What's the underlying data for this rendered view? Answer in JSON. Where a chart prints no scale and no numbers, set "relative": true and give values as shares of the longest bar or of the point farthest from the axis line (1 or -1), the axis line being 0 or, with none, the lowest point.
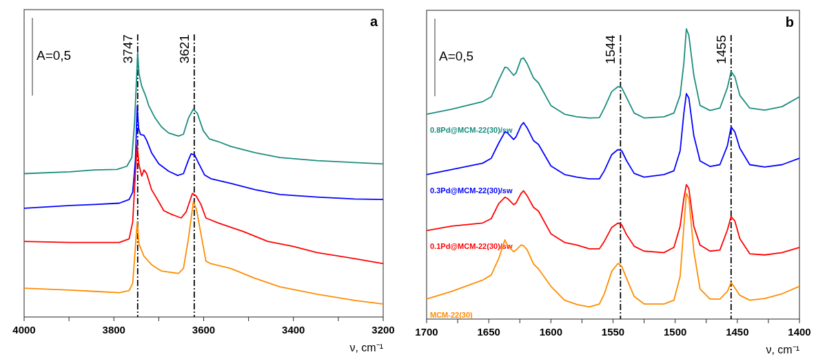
{
  "chart_data": [
    {
      "type": "line",
      "title": "a",
      "xlabel": "ν, cm⁻¹",
      "relative": true,
      "grid": false,
      "legend": false,
      "marker": "none",
      "line_style": "solid",
      "xlim": [
        4000,
        3200
      ],
      "xticks": [
        4000,
        {
          "value": 3900,
          "label": null
        },
        3800,
        {
          "value": 3700,
          "label": null
        },
        3600,
        {
          "value": 3500,
          "label": null
        },
        3400,
        {
          "value": 3300,
          "label": null
        },
        3200
      ],
      "annotations": [
        "A=0,5"
      ],
      "ref_lines": [
        {
          "axis": "x",
          "value": 3747,
          "label": "3747",
          "color": "#000000",
          "line_style": "dashed"
        },
        {
          "axis": "x",
          "value": 3621,
          "label": "3621",
          "color": "#000000",
          "line_style": "dashed"
        }
      ],
      "series": [
        {
          "color": "#1a8c7e",
          "x": [
            4000,
            3898,
            3843,
            3793,
            3771,
            3760,
            3754,
            3749,
            3747,
            3744,
            3738,
            3730,
            3722,
            3708,
            3694,
            3678,
            3656,
            3645,
            3634,
            3623,
            3614,
            3601,
            3587,
            3567,
            3540,
            3485,
            3430,
            3347,
            3264,
            3200
          ],
          "values": [
            0.543,
            0.55,
            0.557,
            0.559,
            0.571,
            0.604,
            0.734,
            0.921,
            1,
            0.921,
            0.874,
            0.841,
            0.799,
            0.753,
            0.72,
            0.697,
            0.685,
            0.692,
            0.753,
            0.787,
            0.771,
            0.706,
            0.674,
            0.664,
            0.646,
            0.622,
            0.604,
            0.592,
            0.585,
            0.58
          ]
        },
        {
          "color": "#0000ff",
          "x": [
            4000,
            3898,
            3843,
            3788,
            3766,
            3758,
            3752,
            3748,
            3745,
            3741,
            3733,
            3727,
            3716,
            3700,
            3678,
            3658,
            3645,
            3634,
            3628,
            3620,
            3612,
            3598,
            3584,
            3540,
            3485,
            3430,
            3347,
            3264,
            3200
          ],
          "values": [
            0.412,
            0.422,
            0.426,
            0.431,
            0.445,
            0.473,
            0.594,
            0.799,
            0.715,
            0.692,
            0.688,
            0.669,
            0.622,
            0.58,
            0.552,
            0.536,
            0.543,
            0.594,
            0.618,
            0.613,
            0.585,
            0.538,
            0.524,
            0.506,
            0.482,
            0.464,
            0.454,
            0.447,
            0.445
          ]
        },
        {
          "color": "#ff0000",
          "x": [
            4000,
            3898,
            3843,
            3788,
            3766,
            3758,
            3752,
            3748,
            3744,
            3738,
            3733,
            3727,
            3716,
            3700,
            3689,
            3672,
            3650,
            3639,
            3625,
            3617,
            3606,
            3595,
            3567,
            3512,
            3457,
            3402,
            3347,
            3264,
            3200
          ],
          "values": [
            0.286,
            0.282,
            0.282,
            0.282,
            0.296,
            0.361,
            0.548,
            0.65,
            0.576,
            0.534,
            0.557,
            0.543,
            0.482,
            0.436,
            0.403,
            0.389,
            0.375,
            0.398,
            0.468,
            0.459,
            0.426,
            0.375,
            0.356,
            0.324,
            0.286,
            0.268,
            0.244,
            0.221,
            0.202
          ]
        },
        {
          "color": "#ff8c00",
          "x": [
            4000,
            3898,
            3843,
            3788,
            3766,
            3758,
            3752,
            3748,
            3744,
            3733,
            3716,
            3694,
            3678,
            3656,
            3645,
            3634,
            3623,
            3616,
            3606,
            3595,
            3584,
            3540,
            3485,
            3430,
            3347,
            3264,
            3200
          ],
          "values": [
            0.109,
            0.102,
            0.097,
            0.092,
            0.1,
            0.128,
            0.268,
            0.361,
            0.277,
            0.23,
            0.198,
            0.174,
            0.17,
            0.165,
            0.184,
            0.296,
            0.436,
            0.408,
            0.314,
            0.212,
            0.202,
            0.184,
            0.146,
            0.114,
            0.086,
            0.063,
            0.049
          ]
        }
      ]
    },
    {
      "type": "line",
      "title": "b",
      "xlabel": "ν, cm⁻¹",
      "relative": true,
      "grid": false,
      "legend": false,
      "marker": "none",
      "line_style": "solid",
      "xlim": [
        1700,
        1400
      ],
      "xticks": [
        1700,
        {
          "value": 1675,
          "label": null
        },
        1650,
        {
          "value": 1625,
          "label": null
        },
        1600,
        {
          "value": 1575,
          "label": null
        },
        1550,
        {
          "value": 1525,
          "label": null
        },
        1500,
        {
          "value": 1475,
          "label": null
        },
        1450,
        {
          "value": 1425,
          "label": null
        },
        1400
      ],
      "annotations": [
        "A=0,5"
      ],
      "ref_lines": [
        {
          "axis": "x",
          "value": 1544,
          "label": "1544",
          "color": "#000000",
          "line_style": "dashed"
        },
        {
          "axis": "x",
          "value": 1455,
          "label": "1455",
          "color": "#000000",
          "line_style": "dashed"
        }
      ],
      "x": [
        1700,
        1680,
        1655,
        1648,
        1642,
        1637,
        1635,
        1630,
        1628,
        1624,
        1622,
        1619,
        1614,
        1610,
        1600,
        1589,
        1579,
        1569,
        1561,
        1557,
        1551,
        1546,
        1543,
        1539,
        1533,
        1525,
        1509,
        1501,
        1496,
        1493,
        1491,
        1489,
        1485,
        1480,
        1472,
        1464,
        1458,
        1455,
        1452,
        1448,
        1440,
        1428,
        1414,
        1400
      ],
      "series": [
        {
          "name": "0.8Pd@MCM-22(30)/sw",
          "color": "#1a8c7e",
          "values": [
            0.706,
            0.723,
            0.749,
            0.766,
            0.823,
            0.868,
            0.866,
            0.84,
            0.848,
            0.896,
            0.9,
            0.879,
            0.831,
            0.814,
            0.736,
            0.706,
            0.697,
            0.693,
            0.694,
            0.727,
            0.784,
            0.801,
            0.797,
            0.762,
            0.71,
            0.693,
            0.697,
            0.71,
            0.771,
            0.883,
            1,
            0.978,
            0.84,
            0.736,
            0.719,
            0.727,
            0.797,
            0.853,
            0.835,
            0.771,
            0.727,
            0.72,
            0.732,
            0.766
          ]
        },
        {
          "name": "0.3Pd@MCM-22(30)/sw",
          "color": "#0000ff",
          "values": [
            0.498,
            0.515,
            0.537,
            0.554,
            0.606,
            0.645,
            0.642,
            0.619,
            0.628,
            0.667,
            0.677,
            0.658,
            0.615,
            0.602,
            0.528,
            0.498,
            0.489,
            0.483,
            0.483,
            0.511,
            0.567,
            0.584,
            0.58,
            0.545,
            0.502,
            0.489,
            0.498,
            0.511,
            0.58,
            0.71,
            0.777,
            0.762,
            0.632,
            0.545,
            0.526,
            0.532,
            0.597,
            0.662,
            0.645,
            0.589,
            0.532,
            0.524,
            0.532,
            0.554
          ]
        },
        {
          "name": "0.1Pd@MCM-22(30)/sw",
          "color": "#ff0000",
          "values": [
            0.305,
            0.32,
            0.331,
            0.346,
            0.398,
            0.42,
            0.416,
            0.394,
            0.4,
            0.433,
            0.442,
            0.424,
            0.385,
            0.372,
            0.294,
            0.264,
            0.255,
            0.242,
            0.242,
            0.268,
            0.316,
            0.331,
            0.325,
            0.29,
            0.251,
            0.234,
            0.229,
            0.247,
            0.32,
            0.416,
            0.463,
            0.45,
            0.32,
            0.255,
            0.234,
            0.238,
            0.307,
            0.353,
            0.338,
            0.277,
            0.225,
            0.221,
            0.229,
            0.247
          ]
        },
        {
          "name": "MCM-22(30)",
          "color": "#ff8c00",
          "values": [
            0.069,
            0.095,
            0.134,
            0.152,
            0.208,
            0.273,
            0.255,
            0.232,
            0.238,
            0.255,
            0.253,
            0.238,
            0.19,
            0.173,
            0.113,
            0.065,
            0.05,
            0.042,
            0.052,
            0.087,
            0.165,
            0.192,
            0.182,
            0.139,
            0.078,
            0.052,
            0.052,
            0.065,
            0.147,
            0.32,
            0.433,
            0.416,
            0.234,
            0.104,
            0.069,
            0.069,
            0.095,
            0.126,
            0.108,
            0.082,
            0.065,
            0.071,
            0.087,
            0.113
          ]
        }
      ]
    }
  ]
}
